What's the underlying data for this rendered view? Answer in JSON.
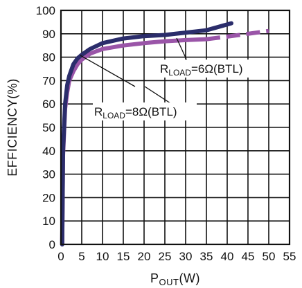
{
  "chart_data": {
    "type": "line",
    "xlabel": {
      "main": "P",
      "sub": "OUT",
      "unit": "(W)"
    },
    "ylabel": "EFFICIENCY(%)",
    "xlim": [
      0,
      55
    ],
    "ylim": [
      0,
      100
    ],
    "xticks": [
      "0",
      "5",
      "10",
      "15",
      "20",
      "25",
      "30",
      "35",
      "40",
      "45",
      "50",
      "55"
    ],
    "yticks": [
      "0",
      "10",
      "20",
      "30",
      "40",
      "50",
      "60",
      "70",
      "80",
      "90",
      "100"
    ],
    "grid": true,
    "series": [
      {
        "name": "RLOAD=6Ω(BTL)",
        "color": "#2b2d6b",
        "x": [
          0.3,
          0.5,
          1,
          1.5,
          2,
          3,
          4,
          5,
          7,
          10,
          15,
          20,
          25,
          30,
          35,
          38,
          41
        ],
        "y": [
          0,
          40,
          60,
          68,
          72,
          77,
          79.5,
          81,
          83.5,
          86,
          88,
          89,
          89.5,
          90.5,
          91.5,
          93,
          94.5
        ],
        "style": "solid"
      },
      {
        "name": "RLOAD=8Ω(BTL)",
        "color": "#9a55a8",
        "x": [
          0.3,
          0.5,
          1,
          1.5,
          2,
          3,
          4,
          5,
          7,
          10,
          15,
          20,
          25,
          30,
          35,
          40,
          45,
          50
        ],
        "y": [
          0,
          38,
          58,
          65,
          70,
          74,
          77,
          79,
          81.5,
          83.5,
          85,
          86,
          86.8,
          87.3,
          87.7,
          88.8,
          90,
          91.2
        ],
        "style": "solid-then-dashed",
        "dash_from_x": 35
      }
    ],
    "annotations": [
      {
        "main": "R",
        "sub": "LOAD",
        "rest": "=6Ω(BTL)",
        "points_to": "RLOAD=6Ω(BTL)"
      },
      {
        "main": "R",
        "sub": "LOAD",
        "rest": "=8Ω(BTL)",
        "points_to": "RLOAD=8Ω(BTL)"
      }
    ]
  }
}
